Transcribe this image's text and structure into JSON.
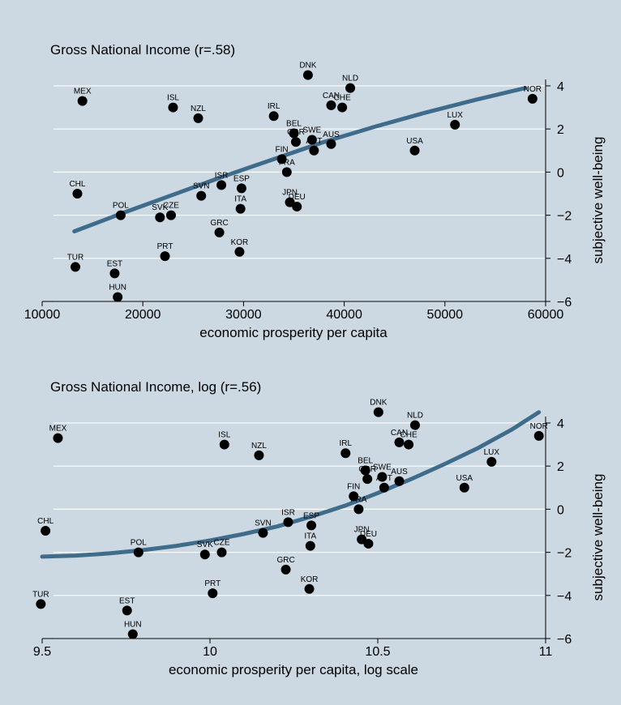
{
  "colors": {
    "background": "#ccd8e2",
    "grid": "#ffffff",
    "point": "#000000",
    "curve": "#3f6c8a"
  },
  "chart_data": [
    {
      "type": "scatter",
      "title": "Gross National Income (r=.58)",
      "xlabel": "economic prosperity per capita",
      "ylabel": "subjective well-being",
      "xlim": [
        10000,
        60000
      ],
      "ylim": [
        -6,
        4.6
      ],
      "xticks": [
        10000,
        20000,
        30000,
        40000,
        50000,
        60000
      ],
      "xtick_labels": [
        "10000",
        "20000",
        "30000",
        "40000",
        "50000",
        "60000"
      ],
      "yticks": [
        -6,
        -4,
        -2,
        0,
        2,
        4
      ],
      "ytick_labels": [
        "−6",
        "−4",
        "−2",
        "0",
        "2",
        "4"
      ],
      "grid": true,
      "points": [
        {
          "label": "MEX",
          "x": 14000,
          "y": 3.3
        },
        {
          "label": "ISL",
          "x": 23000,
          "y": 3.0
        },
        {
          "label": "NZL",
          "x": 25500,
          "y": 2.5
        },
        {
          "label": "IRL",
          "x": 33000,
          "y": 2.6
        },
        {
          "label": "DNK",
          "x": 36400,
          "y": 4.5
        },
        {
          "label": "NLD",
          "x": 40600,
          "y": 3.9
        },
        {
          "label": "CAN",
          "x": 38700,
          "y": 3.1
        },
        {
          "label": "CHE",
          "x": 39800,
          "y": 3.0
        },
        {
          "label": "NOR",
          "x": 58700,
          "y": 3.4
        },
        {
          "label": "LUX",
          "x": 51000,
          "y": 2.2
        },
        {
          "label": "BEL",
          "x": 35000,
          "y": 1.8
        },
        {
          "label": "GBR",
          "x": 35200,
          "y": 1.4
        },
        {
          "label": "SWE",
          "x": 36800,
          "y": 1.5
        },
        {
          "label": "AUS",
          "x": 38700,
          "y": 1.3
        },
        {
          "label": "AUT",
          "x": 37000,
          "y": 1.0
        },
        {
          "label": "USA",
          "x": 47000,
          "y": 1.0
        },
        {
          "label": "FIN",
          "x": 33800,
          "y": 0.6
        },
        {
          "label": "FRA",
          "x": 34300,
          "y": 0.0
        },
        {
          "label": "CHL",
          "x": 13500,
          "y": -1.0
        },
        {
          "label": "SVN",
          "x": 25800,
          "y": -1.1
        },
        {
          "label": "ISR",
          "x": 27800,
          "y": -0.6
        },
        {
          "label": "ESP",
          "x": 29800,
          "y": -0.75
        },
        {
          "label": "ITA",
          "x": 29700,
          "y": -1.7
        },
        {
          "label": "JPN",
          "x": 34600,
          "y": -1.4
        },
        {
          "label": "DEU",
          "x": 35300,
          "y": -1.6
        },
        {
          "label": "POL",
          "x": 17800,
          "y": -2.0
        },
        {
          "label": "SVK",
          "x": 21700,
          "y": -2.1
        },
        {
          "label": "CZE",
          "x": 22800,
          "y": -2.0
        },
        {
          "label": "GRC",
          "x": 27600,
          "y": -2.8
        },
        {
          "label": "KOR",
          "x": 29600,
          "y": -3.7
        },
        {
          "label": "PRT",
          "x": 22200,
          "y": -3.9
        },
        {
          "label": "TUR",
          "x": 13300,
          "y": -4.4
        },
        {
          "label": "EST",
          "x": 17200,
          "y": -4.7
        },
        {
          "label": "HUN",
          "x": 17500,
          "y": -5.8
        }
      ],
      "fit_curve": {
        "x": [
          13200,
          18000,
          23000,
          28000,
          33000,
          38000,
          43000,
          48000,
          53000,
          58000
        ],
        "y": [
          -2.75,
          -1.9,
          -1.05,
          -0.2,
          0.6,
          1.4,
          2.1,
          2.75,
          3.35,
          3.9
        ]
      }
    },
    {
      "type": "scatter",
      "title": "Gross National Income, log (r=.56)",
      "xlabel": "economic prosperity per capita, log scale",
      "ylabel": "subjective well-being",
      "xlim": [
        9.5,
        11
      ],
      "ylim": [
        -6,
        4.6
      ],
      "xticks": [
        9.5,
        10,
        10.5,
        11
      ],
      "xtick_labels": [
        "9.5",
        "10",
        "10.5",
        "11"
      ],
      "yticks": [
        -6,
        -4,
        -2,
        0,
        2,
        4
      ],
      "ytick_labels": [
        "−6",
        "−4",
        "−2",
        "0",
        "2",
        "4"
      ],
      "grid": true,
      "points": [
        {
          "label": "MEX",
          "x": 9.547,
          "y": 3.3
        },
        {
          "label": "ISL",
          "x": 10.043,
          "y": 3.0
        },
        {
          "label": "NZL",
          "x": 10.146,
          "y": 2.5
        },
        {
          "label": "IRL",
          "x": 10.404,
          "y": 2.6
        },
        {
          "label": "DNK",
          "x": 10.502,
          "y": 4.5
        },
        {
          "label": "NLD",
          "x": 10.611,
          "y": 3.9
        },
        {
          "label": "CAN",
          "x": 10.564,
          "y": 3.1
        },
        {
          "label": "CHE",
          "x": 10.592,
          "y": 3.0
        },
        {
          "label": "NOR",
          "x": 10.98,
          "y": 3.4
        },
        {
          "label": "LUX",
          "x": 10.839,
          "y": 2.2
        },
        {
          "label": "BEL",
          "x": 10.463,
          "y": 1.8
        },
        {
          "label": "GBR",
          "x": 10.469,
          "y": 1.4
        },
        {
          "label": "SWE",
          "x": 10.513,
          "y": 1.5
        },
        {
          "label": "AUS",
          "x": 10.564,
          "y": 1.3
        },
        {
          "label": "AUT",
          "x": 10.519,
          "y": 1.0
        },
        {
          "label": "USA",
          "x": 10.758,
          "y": 1.0
        },
        {
          "label": "FIN",
          "x": 10.428,
          "y": 0.6
        },
        {
          "label": "FRA",
          "x": 10.443,
          "y": 0.0
        },
        {
          "label": "CHL",
          "x": 9.51,
          "y": -1.0
        },
        {
          "label": "SVN",
          "x": 10.158,
          "y": -1.1
        },
        {
          "label": "ISR",
          "x": 10.233,
          "y": -0.6
        },
        {
          "label": "ESP",
          "x": 10.302,
          "y": -0.75
        },
        {
          "label": "ITA",
          "x": 10.299,
          "y": -1.7
        },
        {
          "label": "JPN",
          "x": 10.452,
          "y": -1.4
        },
        {
          "label": "DEU",
          "x": 10.472,
          "y": -1.6
        },
        {
          "label": "POL",
          "x": 9.787,
          "y": -2.0
        },
        {
          "label": "SVK",
          "x": 9.985,
          "y": -2.1
        },
        {
          "label": "CZE",
          "x": 10.035,
          "y": -2.0
        },
        {
          "label": "GRC",
          "x": 10.226,
          "y": -2.8
        },
        {
          "label": "KOR",
          "x": 10.296,
          "y": -3.7
        },
        {
          "label": "PRT",
          "x": 10.008,
          "y": -3.9
        },
        {
          "label": "TUR",
          "x": 9.496,
          "y": -4.4
        },
        {
          "label": "EST",
          "x": 9.753,
          "y": -4.7
        },
        {
          "label": "HUN",
          "x": 9.77,
          "y": -5.8
        }
      ],
      "fit_curve": {
        "x": [
          9.5,
          9.6,
          9.7,
          9.8,
          9.9,
          10.0,
          10.1,
          10.2,
          10.3,
          10.4,
          10.5,
          10.6,
          10.7,
          10.8,
          10.9,
          10.98
        ],
        "y": [
          -2.2,
          -2.15,
          -2.05,
          -1.9,
          -1.7,
          -1.45,
          -1.15,
          -0.8,
          -0.35,
          0.15,
          0.75,
          1.4,
          2.1,
          2.85,
          3.7,
          4.5
        ]
      }
    }
  ]
}
